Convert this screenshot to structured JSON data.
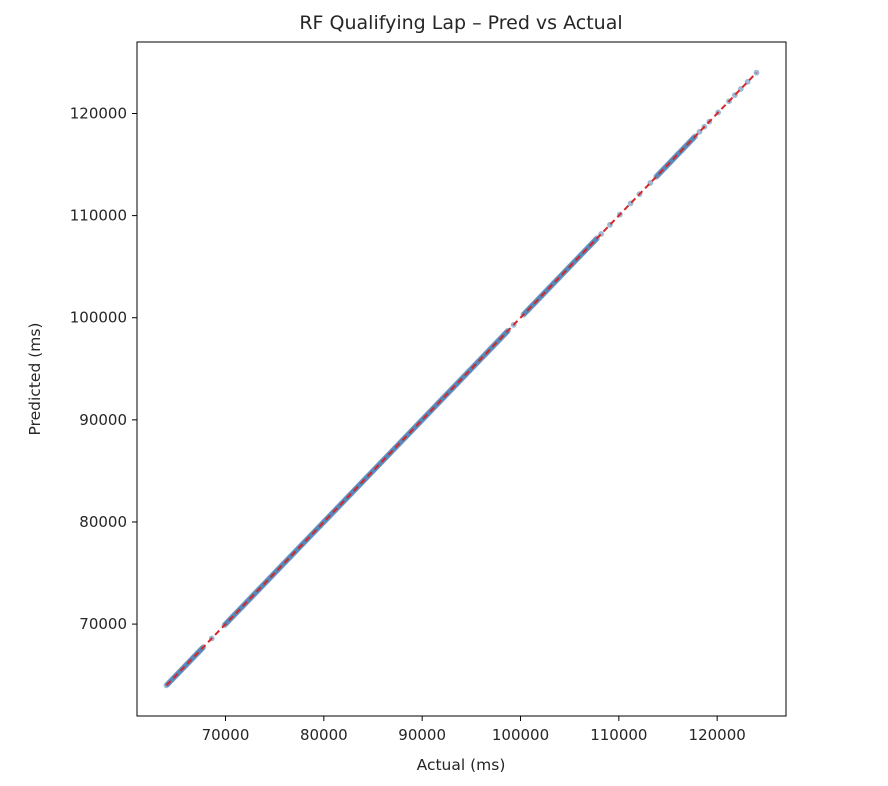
{
  "chart_data": {
    "type": "scatter",
    "title": "RF Qualifying Lap – Pred vs Actual",
    "xlabel": "Actual (ms)",
    "ylabel": "Predicted (ms)",
    "xlim": [
      61000,
      127000
    ],
    "ylim": [
      61000,
      127000
    ],
    "xticks": [
      70000,
      80000,
      90000,
      100000,
      110000,
      120000
    ],
    "yticks": [
      70000,
      80000,
      90000,
      100000,
      110000,
      120000
    ],
    "grid": false,
    "series": [
      {
        "kind": "scatter",
        "color": "#4a7fb5",
        "segments": [
          {
            "from": 64000,
            "to": 67800
          },
          {
            "from": 69900,
            "to": 98800
          },
          {
            "from": 100300,
            "to": 107800
          },
          {
            "from": 113800,
            "to": 117800
          }
        ],
        "points": [
          [
            68600,
            68600
          ],
          [
            99300,
            99300
          ],
          [
            108200,
            108200
          ],
          [
            109100,
            109100
          ],
          [
            110100,
            110100
          ],
          [
            111200,
            111200
          ],
          [
            112100,
            112100
          ],
          [
            113200,
            113200
          ],
          [
            118200,
            118200
          ],
          [
            118700,
            118700
          ],
          [
            119200,
            119200
          ],
          [
            120100,
            120100
          ],
          [
            121200,
            121200
          ],
          [
            121800,
            121800
          ],
          [
            122400,
            122400
          ],
          [
            123100,
            123100
          ],
          [
            124000,
            124000
          ]
        ]
      },
      {
        "kind": "reference-line",
        "color": "#d62728",
        "style": "dashed",
        "x": [
          64000,
          124000
        ],
        "y": [
          64000,
          124000
        ]
      }
    ]
  }
}
